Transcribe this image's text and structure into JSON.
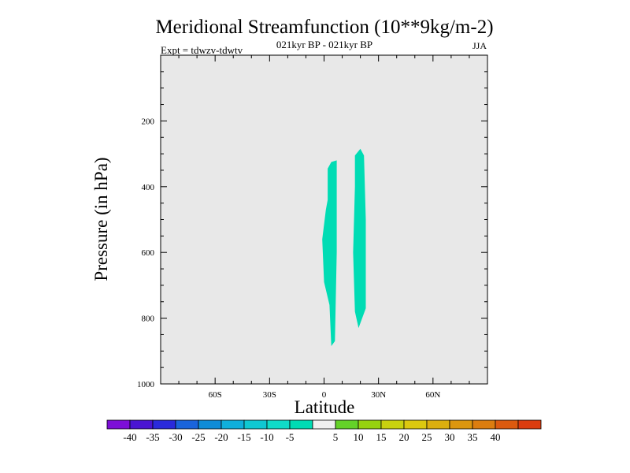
{
  "chart_data": {
    "type": "heatmap",
    "title": "Meridional Streamfunction (10**9kg/m-2)",
    "subtitle": "021kyr BP - 021kyr BP",
    "experiment": "Expt = tdwzv-tdwtv",
    "season": "JJA",
    "xlabel": "Latitude",
    "ylabel": "Pressure (in hPa)",
    "xlim": [
      -90,
      90
    ],
    "ylim": [
      1000,
      0
    ],
    "x_ticks": [
      {
        "value": -60,
        "label": "60S"
      },
      {
        "value": -30,
        "label": "30S"
      },
      {
        "value": 0,
        "label": "0"
      },
      {
        "value": 30,
        "label": "30N"
      },
      {
        "value": 60,
        "label": "60N"
      }
    ],
    "y_ticks": [
      {
        "value": 200,
        "label": "200"
      },
      {
        "value": 400,
        "label": "400"
      },
      {
        "value": 600,
        "label": "600"
      },
      {
        "value": 800,
        "label": "800"
      },
      {
        "value": 1000,
        "label": "1000"
      }
    ],
    "background_color": "#e8e8e8",
    "regions": [
      {
        "name": "",
        "level": "-10 to -5",
        "color": "#00dcb4",
        "points": [
          [
            2,
            345
          ],
          [
            4,
            325
          ],
          [
            7,
            320
          ],
          [
            7,
            600
          ],
          [
            6,
            870
          ],
          [
            4,
            885
          ],
          [
            3,
            760
          ],
          [
            0,
            690
          ],
          [
            -1,
            560
          ],
          [
            1,
            470
          ],
          [
            2,
            440
          ]
        ]
      },
      {
        "name": "",
        "level": "-10 to -5",
        "color": "#00dcb4",
        "points": [
          [
            17,
            305
          ],
          [
            20,
            285
          ],
          [
            22,
            305
          ],
          [
            23,
            500
          ],
          [
            23,
            770
          ],
          [
            19,
            830
          ],
          [
            17,
            780
          ],
          [
            16,
            600
          ],
          [
            17,
            400
          ]
        ]
      }
    ],
    "colorbar": {
      "colors": [
        "#7d0fd7",
        "#4a14d2",
        "#2a2adc",
        "#1a64dc",
        "#0f8cd7",
        "#0fafdc",
        "#0fc8d2",
        "#0fdcc8",
        "#00dcb4",
        "#f0f0f0",
        "#64d228",
        "#96d20f",
        "#c8d20f",
        "#dcc80f",
        "#dcaf0f",
        "#dc960f",
        "#dc7d0f",
        "#dc5a0f",
        "#dc3c0f"
      ],
      "labels": [
        "-40",
        "-35",
        "-30",
        "-25",
        "-20",
        "-15",
        "-10",
        "-5",
        "5",
        "10",
        "15",
        "20",
        "25",
        "30",
        "35",
        "40"
      ]
    }
  }
}
